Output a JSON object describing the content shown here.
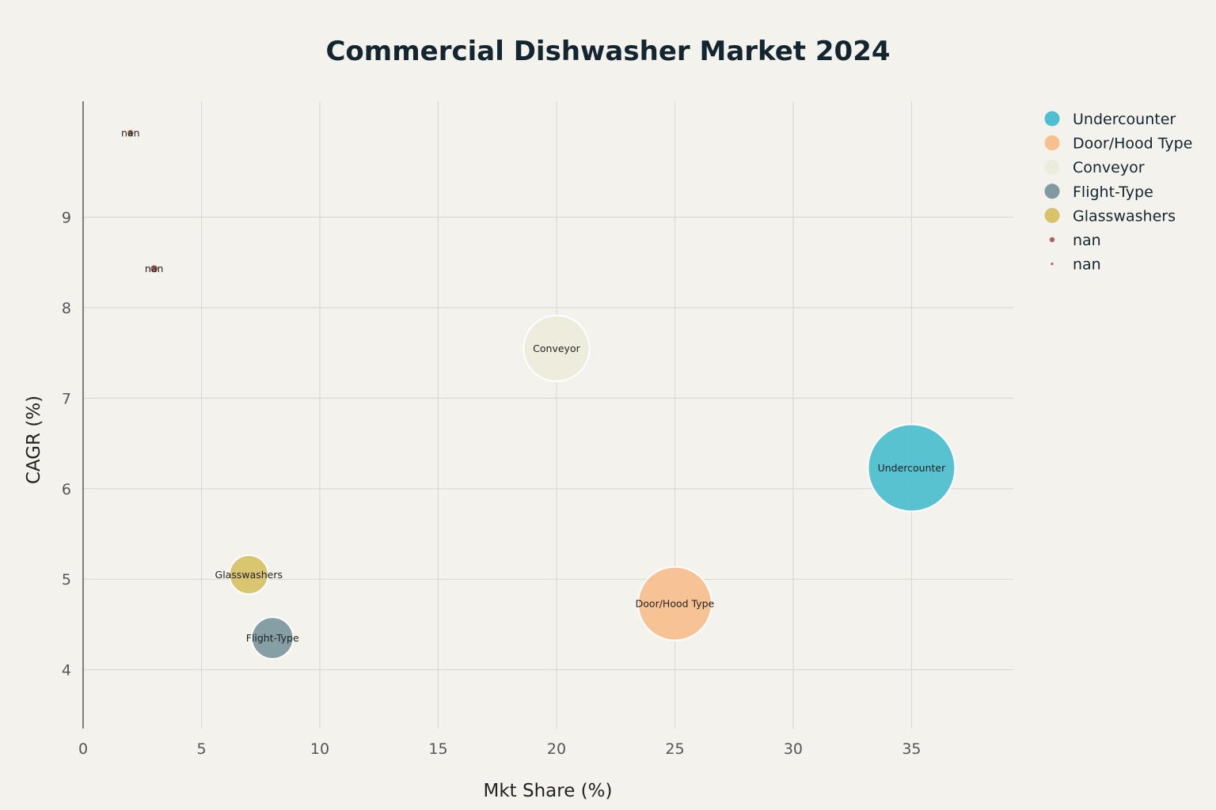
{
  "chart_data": {
    "type": "scatter",
    "title": "Commercial Dishwasher Market 2024",
    "xlabel": "Mkt Share (%)",
    "ylabel": "CAGR (%)",
    "xlim": [
      0,
      39.3
    ],
    "ylim": [
      3.35,
      10.28
    ],
    "x_ticks": [
      0,
      5,
      10,
      15,
      20,
      25,
      30,
      35
    ],
    "y_ticks": [
      4,
      5,
      6,
      7,
      8,
      9
    ],
    "grid": true,
    "legend_position": "top-right",
    "series": [
      {
        "name": "Undercounter",
        "x": 35,
        "y": 6.23,
        "size": 35,
        "color": "#4fbfcf",
        "label": "Undercounter"
      },
      {
        "name": "Door/Hood Type",
        "x": 25,
        "y": 4.73,
        "size": 25,
        "color": "#f7c08f",
        "label": "Door/Hood Type"
      },
      {
        "name": "Conveyor",
        "x": 20,
        "y": 7.55,
        "size": 20,
        "color": "#ecebdc",
        "label": "Conveyor"
      },
      {
        "name": "Flight-Type",
        "x": 8,
        "y": 4.35,
        "size": 8,
        "color": "#7f9aa1",
        "label": "Flight-Type"
      },
      {
        "name": "Glasswashers",
        "x": 7,
        "y": 5.05,
        "size": 7,
        "color": "#d8c26a",
        "label": "Glasswashers"
      },
      {
        "name": "nan",
        "x": 3,
        "y": 8.43,
        "size": 3,
        "color": "#b0625d",
        "label": "nan"
      },
      {
        "name": "nan",
        "x": 2,
        "y": 9.93,
        "size": 2,
        "color": "#a5704e",
        "label": "nan"
      }
    ]
  }
}
